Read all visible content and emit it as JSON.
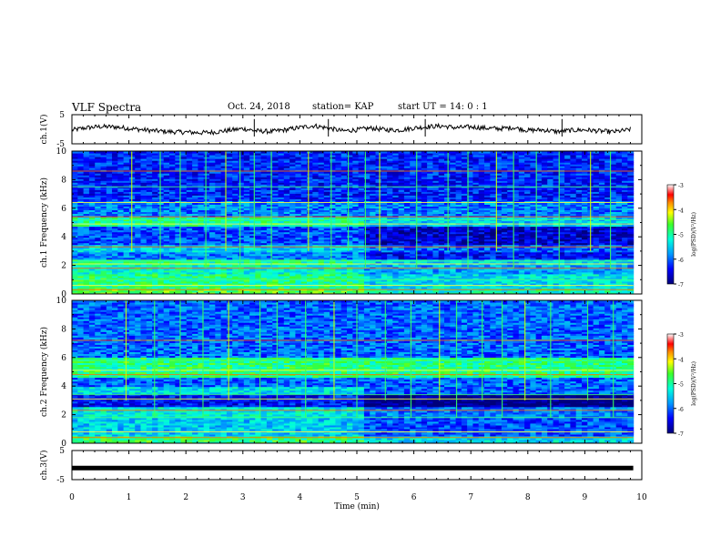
{
  "header": {
    "title": "VLF Spectra",
    "date": "Oct. 24, 2018",
    "station": "station= KAP",
    "start": "start  UT =   14: 0  : 1"
  },
  "chart_data": [
    {
      "type": "line",
      "title": "",
      "ylabel": "ch.1(V)",
      "xlim": [
        0,
        10
      ],
      "ylim": [
        -5,
        5
      ],
      "yticks": [
        "5",
        "-5"
      ],
      "series": [
        {
          "values": [
            {
              "x": 0,
              "y": -0.3
            },
            {
              "x": 0.25,
              "y": 0.5
            },
            {
              "x": 0.5,
              "y": 0.9
            },
            {
              "x": 0.75,
              "y": 0.8
            },
            {
              "x": 1,
              "y": 0.3
            },
            {
              "x": 1.25,
              "y": -0.2
            },
            {
              "x": 1.5,
              "y": -0.6
            },
            {
              "x": 1.75,
              "y": -0.9
            },
            {
              "x": 2,
              "y": -1.0
            },
            {
              "x": 2.25,
              "y": -1.2
            },
            {
              "x": 2.5,
              "y": -1.0
            },
            {
              "x": 2.75,
              "y": -0.4
            },
            {
              "x": 3,
              "y": 0.2
            },
            {
              "x": 3.25,
              "y": -0.6
            },
            {
              "x": 3.5,
              "y": -0.8
            },
            {
              "x": 3.75,
              "y": -0.2
            },
            {
              "x": 4,
              "y": 0.6
            },
            {
              "x": 4.25,
              "y": 1.2
            },
            {
              "x": 4.5,
              "y": 0.4
            },
            {
              "x": 4.75,
              "y": -0.6
            },
            {
              "x": 5,
              "y": -0.2
            },
            {
              "x": 5.25,
              "y": 0.4
            },
            {
              "x": 5.5,
              "y": -0.2
            },
            {
              "x": 5.75,
              "y": -0.3
            },
            {
              "x": 6,
              "y": 0.4
            },
            {
              "x": 6.25,
              "y": 0.9
            },
            {
              "x": 6.5,
              "y": 1.1
            },
            {
              "x": 6.75,
              "y": 0.5
            },
            {
              "x": 7,
              "y": 0.8
            },
            {
              "x": 7.25,
              "y": 0.4
            },
            {
              "x": 7.5,
              "y": 0.2
            },
            {
              "x": 7.75,
              "y": 0.6
            },
            {
              "x": 8,
              "y": -0.4
            },
            {
              "x": 8.25,
              "y": -0.2
            },
            {
              "x": 8.5,
              "y": -0.8
            },
            {
              "x": 8.75,
              "y": -0.4
            },
            {
              "x": 9,
              "y": -0.2
            },
            {
              "x": 9.25,
              "y": -0.6
            },
            {
              "x": 9.5,
              "y": -0.9
            },
            {
              "x": 9.75,
              "y": -0.3
            },
            {
              "x": 9.8,
              "y": 0.0
            }
          ]
        }
      ]
    },
    {
      "type": "heatmap",
      "title": "",
      "ylabel": "ch.1 Frequency (kHz)",
      "xlim": [
        0,
        10
      ],
      "ylim": [
        0,
        10
      ],
      "data_extent_x": [
        0,
        9.85
      ],
      "yticks": [
        "0",
        "2",
        "4",
        "6",
        "8",
        "10"
      ],
      "colorbar": {
        "label": "log(PSD)(V²/Hz)",
        "range": [
          -7,
          -3
        ],
        "ticks": [
          "-3",
          "-4",
          "-5",
          "-6",
          "-7"
        ]
      },
      "bands": [
        {
          "f0": 0.0,
          "f1": 0.4,
          "psd": -4.6
        },
        {
          "f0": 0.4,
          "f1": 1.4,
          "psd": -4.9
        },
        {
          "f0": 1.4,
          "f1": 2.0,
          "psd": -5.2
        },
        {
          "f0": 2.0,
          "f1": 2.4,
          "psd": -5.0
        },
        {
          "f0": 2.4,
          "f1": 3.0,
          "psd": -5.9
        },
        {
          "f0": 3.0,
          "f1": 3.5,
          "psd": -5.5
        },
        {
          "f0": 3.5,
          "f1": 4.8,
          "psd": -6.1
        },
        {
          "f0": 4.8,
          "f1": 5.4,
          "psd": -5.0
        },
        {
          "f0": 5.4,
          "f1": 6.6,
          "psd": -5.9
        },
        {
          "f0": 6.6,
          "f1": 10.0,
          "psd": -6.3
        }
      ],
      "later_change": {
        "after_min": 5.15,
        "f0": 0.0,
        "f1": 5.4,
        "psd_shift": -0.5
      },
      "tones_khz": [
        0.3,
        0.6,
        1.0,
        1.8,
        2.1,
        2.3,
        3.3,
        4.9,
        5.2,
        5.4,
        6.4,
        7.5,
        8.6
      ],
      "burst_times_min": [
        1.05,
        1.55,
        1.9,
        2.35,
        2.7,
        2.95,
        3.2,
        3.5,
        4.15,
        4.55,
        4.85,
        5.15,
        5.4,
        6.05,
        6.6,
        6.95,
        7.45,
        7.75,
        8.15,
        8.55,
        9.1,
        9.45
      ]
    },
    {
      "type": "heatmap",
      "title": "",
      "ylabel": "ch.2 Frequency (kHz)",
      "xlim": [
        0,
        10
      ],
      "ylim": [
        0,
        10
      ],
      "data_extent_x": [
        0,
        9.85
      ],
      "yticks": [
        "0",
        "2",
        "4",
        "6",
        "8",
        "10"
      ],
      "colorbar": {
        "label": "log(PSD)(V²/Hz)",
        "range": [
          -7,
          -3
        ],
        "ticks": [
          "-3",
          "-4",
          "-5",
          "-6",
          "-7"
        ]
      },
      "bands": [
        {
          "f0": 0.0,
          "f1": 0.5,
          "psd": -4.8
        },
        {
          "f0": 0.5,
          "f1": 1.8,
          "psd": -5.5
        },
        {
          "f0": 1.8,
          "f1": 2.6,
          "psd": -5.3
        },
        {
          "f0": 2.6,
          "f1": 3.4,
          "psd": -6.4
        },
        {
          "f0": 3.4,
          "f1": 4.0,
          "psd": -5.4
        },
        {
          "f0": 4.0,
          "f1": 4.6,
          "psd": -6.0
        },
        {
          "f0": 4.6,
          "f1": 6.0,
          "psd": -4.9
        },
        {
          "f0": 6.0,
          "f1": 10.0,
          "psd": -6.0
        }
      ],
      "later_change": {
        "after_min": 5.15,
        "f0": 0.0,
        "f1": 4.0,
        "psd_shift": -0.6
      },
      "tones_khz": [
        0.4,
        0.8,
        1.8,
        2.3,
        3.1,
        3.4,
        4.8,
        5.1,
        5.8,
        7.2
      ],
      "burst_times_min": [
        0.95,
        1.45,
        1.9,
        2.3,
        2.75,
        3.3,
        3.6,
        4.1,
        4.6,
        5.0,
        5.5,
        5.95,
        6.45,
        6.75,
        7.2,
        7.55,
        7.95,
        8.4,
        9.05,
        9.5
      ]
    },
    {
      "type": "line",
      "title": "",
      "ylabel": "ch.3(V)",
      "xlabel": "Time (min)",
      "xlim": [
        0,
        10
      ],
      "ylim": [
        -5,
        5
      ],
      "xticks": [
        "0",
        "1",
        "2",
        "3",
        "4",
        "5",
        "6",
        "7",
        "8",
        "9",
        "10"
      ],
      "yticks": [
        "5",
        "-5"
      ],
      "series": [
        {
          "values": [
            {
              "x": 0,
              "y": -1.0
            },
            {
              "x": 9.85,
              "y": -1.0
            }
          ]
        }
      ]
    }
  ]
}
